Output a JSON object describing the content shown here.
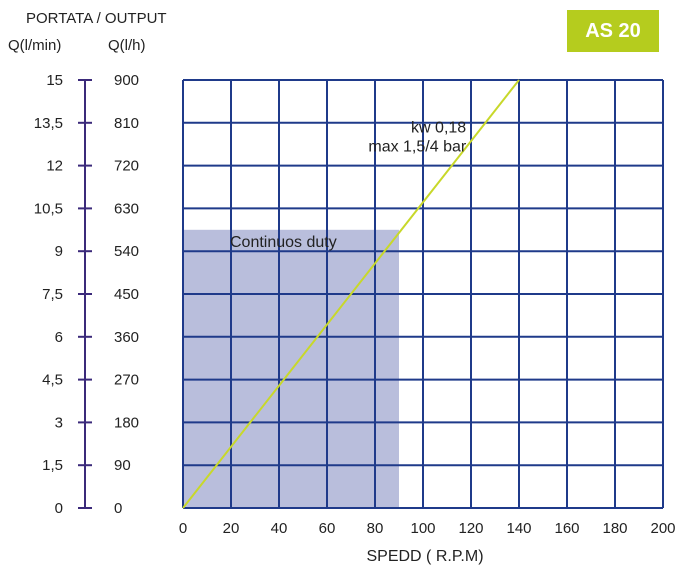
{
  "header": {
    "title": "PORTATA / OUTPUT",
    "unit_left": "Q(l/min)",
    "unit_right": "Q(l/h)"
  },
  "badge": {
    "label": "AS 20"
  },
  "colors": {
    "grid": "#1f3a8a",
    "axis": "#3b2a7a",
    "line": "#c8d82a",
    "duty_area": "#b9bedc",
    "badge": "#b5cc1e",
    "text": "#222222"
  },
  "chart_data": {
    "type": "line",
    "title": "AS 20",
    "xlabel": "SPEDD ( R.P.M)",
    "ylabel": "PORTATA / OUTPUT",
    "xlim": [
      0,
      200
    ],
    "ylim": [
      0,
      900
    ],
    "x_ticks": [
      0,
      20,
      40,
      60,
      80,
      100,
      120,
      140,
      160,
      180,
      200
    ],
    "y_ticks_lph": [
      0,
      90,
      180,
      270,
      360,
      450,
      540,
      630,
      720,
      810,
      900
    ],
    "y_ticks_lmin": [
      "0",
      "1,5",
      "3",
      "4,5",
      "6",
      "7,5",
      "9",
      "10,5",
      "12",
      "13,5",
      "15"
    ],
    "grid": true,
    "series": [
      {
        "name": "kw 0,18",
        "x": [
          0,
          140
        ],
        "y": [
          0,
          900
        ]
      }
    ],
    "annotations": [
      {
        "text": "kw 0,18",
        "x": 118,
        "y": 790
      },
      {
        "text": "max 1,5/4 bar",
        "x": 118,
        "y": 750
      },
      {
        "text": "Continuos duty",
        "x": 62,
        "y": 565
      }
    ],
    "regions": [
      {
        "label": "Continuos duty",
        "x": [
          0,
          90
        ],
        "y": [
          0,
          585
        ]
      }
    ]
  }
}
